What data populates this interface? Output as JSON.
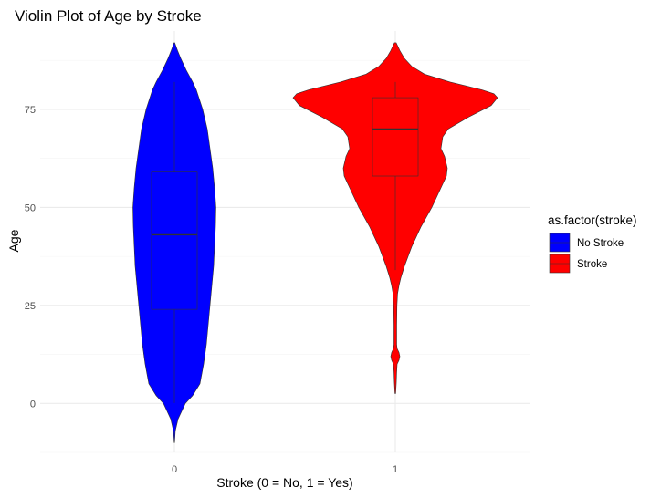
{
  "chart_data": {
    "type": "violin",
    "title": "Violin Plot of Age by Stroke",
    "xlabel": "Stroke (0 = No, 1 = Yes)",
    "ylabel": "Age",
    "x_ticks": [
      "0",
      "1"
    ],
    "y_ticks": [
      0,
      25,
      50,
      75
    ],
    "ylim": [
      -12.5,
      95
    ],
    "grid": true,
    "legend": {
      "title": "as.factor(stroke)",
      "placement": "right",
      "entries": [
        {
          "label": "No Stroke",
          "color": "#0000ff"
        },
        {
          "label": "Stroke",
          "color": "#ff0000"
        }
      ]
    },
    "series": [
      {
        "x": "0",
        "color": "#0000ff",
        "box": {
          "min": 0.08,
          "q1": 24,
          "median": 43,
          "q3": 59,
          "max": 82
        },
        "violin": {
          "y": [
            -10,
            -7,
            -4,
            0,
            2,
            5,
            10,
            15,
            20,
            25,
            30,
            35,
            40,
            45,
            50,
            55,
            60,
            65,
            70,
            75,
            80,
            82,
            85,
            88,
            90,
            92
          ],
          "width": [
            0.2,
            1.0,
            4.0,
            12,
            20,
            28,
            32,
            35,
            37,
            39,
            41,
            43,
            44,
            45,
            45.5,
            44,
            42,
            39,
            36,
            31,
            24,
            20,
            13,
            7,
            3.5,
            0.4
          ]
        }
      },
      {
        "x": "1",
        "color": "#ff0000",
        "box": {
          "min": 34,
          "q1": 58,
          "median": 70,
          "q3": 78,
          "max": 82
        },
        "violin": {
          "y": [
            2.5,
            5,
            8,
            10,
            11,
            12,
            13,
            14,
            15,
            20,
            25,
            28,
            30,
            32,
            35,
            40,
            45,
            50,
            55,
            58,
            60,
            63,
            65,
            68,
            70,
            73,
            76,
            78,
            79,
            80,
            82,
            84,
            86,
            88,
            90,
            92
          ],
          "width": [
            0.4,
            1.0,
            1.5,
            2.0,
            4.0,
            5.0,
            4.0,
            2.0,
            1.5,
            1.5,
            1.8,
            2.5,
            4.0,
            6.0,
            10,
            18,
            28,
            40,
            50,
            56,
            57,
            54,
            50,
            52,
            58,
            80,
            105,
            112,
            108,
            95,
            60,
            32,
            18,
            10,
            5,
            1.0
          ]
        }
      }
    ]
  }
}
